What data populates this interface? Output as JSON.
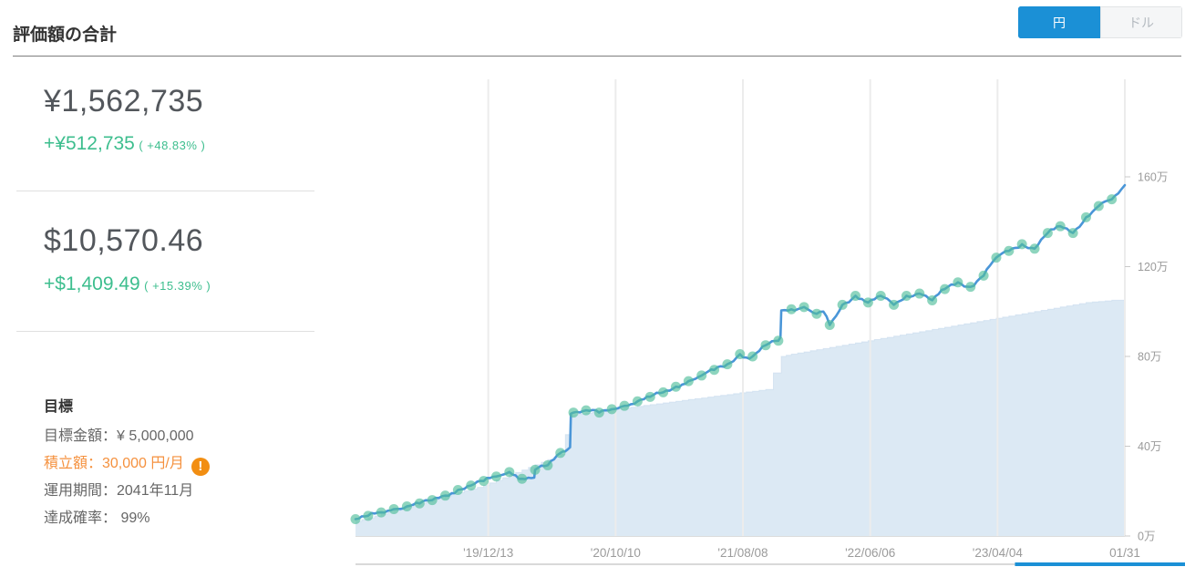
{
  "header": {
    "title": "評価額の合計",
    "currency_toggle": {
      "yen_label": "円",
      "dollar_label": "ドル",
      "active": "円"
    }
  },
  "summary": {
    "yen": {
      "total": "¥1,562,735",
      "gain": "+¥512,735",
      "gain_pct": "( +48.83% )"
    },
    "usd": {
      "total": "$10,570.46",
      "gain": "+$1,409.49",
      "gain_pct": "( +15.39% )"
    }
  },
  "goal": {
    "heading": "目標",
    "target_amount": "目標金額：¥ 5,000,000",
    "monthly_deposit": "積立額：30,000 円/月",
    "warning_glyph": "!",
    "period": "運用期間：2041年11月",
    "probability": "達成確率： 99%"
  },
  "colors": {
    "accent_blue": "#1b90d6",
    "gain_green": "#3dbe8e",
    "warning_orange": "#f5913e",
    "warning_icon_bg": "#f28e12"
  },
  "chart_data": {
    "type": "line",
    "x_unit": "days since first data point (2019-02 to 2024-01-31)",
    "x_domain": [
      0,
      1825
    ],
    "x_ticks": [
      {
        "d": 315,
        "label": "'19/12/13"
      },
      {
        "d": 617,
        "label": "'20/10/10"
      },
      {
        "d": 919,
        "label": "'21/08/08"
      },
      {
        "d": 1221,
        "label": "'22/06/06"
      },
      {
        "d": 1523,
        "label": "'23/04/04"
      },
      {
        "d": 1825,
        "label": "01/31"
      }
    ],
    "y_unit": "万円",
    "y_ticks": [
      {
        "v": 0,
        "label": "0万"
      },
      {
        "v": 40,
        "label": "40万"
      },
      {
        "v": 80,
        "label": "80万"
      },
      {
        "v": 120,
        "label": "120万"
      },
      {
        "v": 160,
        "label": "160万"
      }
    ],
    "grid": "vertical-only",
    "legend": "none",
    "line_noise_amplitude": 0.9,
    "series": [
      {
        "name": "deposit-principal-area",
        "type": "step-area",
        "fill": "#dce9f4",
        "edge": "#c6daec",
        "points": [
          [
            0,
            6.5
          ],
          [
            30,
            8.1
          ],
          [
            61,
            9.7
          ],
          [
            91,
            11.3
          ],
          [
            122,
            12.9
          ],
          [
            152,
            14.5
          ],
          [
            182,
            16.1
          ],
          [
            213,
            17.7
          ],
          [
            243,
            19.3
          ],
          [
            274,
            20.9
          ],
          [
            304,
            22.5
          ],
          [
            334,
            24.8
          ],
          [
            365,
            27.1
          ],
          [
            395,
            29.4
          ],
          [
            426,
            31.7
          ],
          [
            456,
            34
          ],
          [
            486,
            36.3
          ],
          [
            510,
            54
          ],
          [
            547,
            54.8
          ],
          [
            578,
            55.5
          ],
          [
            608,
            56.3
          ],
          [
            638,
            57
          ],
          [
            669,
            57.8
          ],
          [
            699,
            58.5
          ],
          [
            730,
            59.3
          ],
          [
            760,
            60
          ],
          [
            790,
            60.8
          ],
          [
            821,
            61.5
          ],
          [
            851,
            62.3
          ],
          [
            882,
            63
          ],
          [
            912,
            63.8
          ],
          [
            942,
            64.5
          ],
          [
            973,
            65.3
          ],
          [
            1010,
            80
          ],
          [
            1034,
            81
          ],
          [
            1064,
            82
          ],
          [
            1094,
            83
          ],
          [
            1125,
            84
          ],
          [
            1155,
            85
          ],
          [
            1186,
            86
          ],
          [
            1216,
            87
          ],
          [
            1246,
            88
          ],
          [
            1277,
            89
          ],
          [
            1307,
            90
          ],
          [
            1338,
            91
          ],
          [
            1368,
            92
          ],
          [
            1398,
            93
          ],
          [
            1429,
            94
          ],
          [
            1459,
            95
          ],
          [
            1490,
            96
          ],
          [
            1520,
            97
          ],
          [
            1550,
            98
          ],
          [
            1581,
            99
          ],
          [
            1611,
            100
          ],
          [
            1642,
            101
          ],
          [
            1672,
            102
          ],
          [
            1702,
            103
          ],
          [
            1733,
            104
          ],
          [
            1763,
            104.5
          ],
          [
            1794,
            105
          ],
          [
            1825,
            105
          ]
        ]
      },
      {
        "name": "valuation-line",
        "type": "line",
        "stroke": "#4a96d8",
        "points": [
          [
            0,
            7.5
          ],
          [
            30,
            9
          ],
          [
            61,
            10.5
          ],
          [
            91,
            12
          ],
          [
            122,
            13.2
          ],
          [
            152,
            14.5
          ],
          [
            182,
            16
          ],
          [
            213,
            18
          ],
          [
            243,
            20.5
          ],
          [
            274,
            22.5
          ],
          [
            304,
            24.5
          ],
          [
            334,
            26.5
          ],
          [
            365,
            28.5
          ],
          [
            380,
            27
          ],
          [
            395,
            25.5
          ],
          [
            410,
            26
          ],
          [
            424,
            26
          ],
          [
            426,
            29.5
          ],
          [
            456,
            31.5
          ],
          [
            486,
            37
          ],
          [
            503,
            38.5
          ],
          [
            509,
            39.5
          ],
          [
            511,
            54.5
          ],
          [
            517,
            55
          ],
          [
            547,
            56
          ],
          [
            578,
            55
          ],
          [
            608,
            56.5
          ],
          [
            638,
            58
          ],
          [
            669,
            60
          ],
          [
            699,
            62
          ],
          [
            730,
            64
          ],
          [
            760,
            66.5
          ],
          [
            790,
            69
          ],
          [
            821,
            71.5
          ],
          [
            851,
            74
          ],
          [
            882,
            76.5
          ],
          [
            912,
            81
          ],
          [
            927,
            79.5
          ],
          [
            942,
            80
          ],
          [
            973,
            85
          ],
          [
            1003,
            87
          ],
          [
            1008,
            88.5
          ],
          [
            1010,
            100.5
          ],
          [
            1034,
            101
          ],
          [
            1064,
            102
          ],
          [
            1094,
            99
          ],
          [
            1110,
            100
          ],
          [
            1125,
            94
          ],
          [
            1140,
            98
          ],
          [
            1155,
            103
          ],
          [
            1186,
            107
          ],
          [
            1216,
            104
          ],
          [
            1246,
            107
          ],
          [
            1277,
            103
          ],
          [
            1307,
            107
          ],
          [
            1338,
            108
          ],
          [
            1368,
            105
          ],
          [
            1398,
            110
          ],
          [
            1429,
            113
          ],
          [
            1459,
            111
          ],
          [
            1490,
            116
          ],
          [
            1520,
            124
          ],
          [
            1550,
            127
          ],
          [
            1581,
            130
          ],
          [
            1611,
            128
          ],
          [
            1642,
            135
          ],
          [
            1672,
            138
          ],
          [
            1702,
            135
          ],
          [
            1733,
            142
          ],
          [
            1763,
            147
          ],
          [
            1794,
            150
          ],
          [
            1825,
            156.3
          ]
        ]
      },
      {
        "name": "monthly-valuation-dots",
        "type": "scatter",
        "fill": "#52be9b",
        "opacity": 0.65,
        "radius": 5.5,
        "points": [
          [
            0,
            7.5
          ],
          [
            30,
            9
          ],
          [
            61,
            10.5
          ],
          [
            91,
            12
          ],
          [
            122,
            13.2
          ],
          [
            152,
            14.5
          ],
          [
            182,
            16
          ],
          [
            213,
            18
          ],
          [
            243,
            20.5
          ],
          [
            274,
            22.5
          ],
          [
            304,
            24.5
          ],
          [
            334,
            26.5
          ],
          [
            365,
            28.5
          ],
          [
            395,
            25.5
          ],
          [
            426,
            29.5
          ],
          [
            456,
            31.5
          ],
          [
            486,
            37
          ],
          [
            517,
            55
          ],
          [
            547,
            56
          ],
          [
            578,
            55
          ],
          [
            608,
            56.5
          ],
          [
            638,
            58
          ],
          [
            669,
            60
          ],
          [
            699,
            62
          ],
          [
            730,
            64
          ],
          [
            760,
            66.5
          ],
          [
            790,
            69
          ],
          [
            821,
            71.5
          ],
          [
            851,
            74
          ],
          [
            882,
            76.5
          ],
          [
            912,
            81
          ],
          [
            942,
            80
          ],
          [
            973,
            85
          ],
          [
            1003,
            87
          ],
          [
            1034,
            101
          ],
          [
            1064,
            102
          ],
          [
            1094,
            99
          ],
          [
            1125,
            94
          ],
          [
            1155,
            103
          ],
          [
            1186,
            107
          ],
          [
            1216,
            104
          ],
          [
            1246,
            107
          ],
          [
            1277,
            103
          ],
          [
            1307,
            107
          ],
          [
            1338,
            108
          ],
          [
            1368,
            105
          ],
          [
            1398,
            110
          ],
          [
            1429,
            113
          ],
          [
            1459,
            111
          ],
          [
            1490,
            116
          ],
          [
            1520,
            124
          ],
          [
            1550,
            127
          ],
          [
            1581,
            130
          ],
          [
            1611,
            128
          ],
          [
            1642,
            135
          ],
          [
            1672,
            138
          ],
          [
            1702,
            135
          ],
          [
            1733,
            142
          ],
          [
            1763,
            147
          ],
          [
            1794,
            150
          ]
        ]
      }
    ],
    "range_slider": {
      "selected_start_fraction": 0.795,
      "selected_end_fraction": 1.0,
      "track_color": "#d9d9d9",
      "selected_color": "#1b90d6"
    }
  }
}
